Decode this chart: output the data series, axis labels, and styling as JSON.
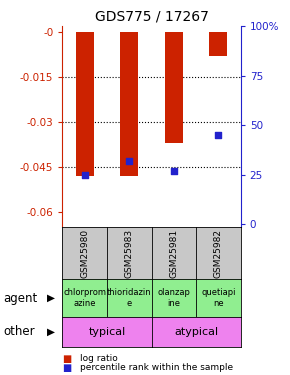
{
  "title": "GDS775 / 17267",
  "samples": [
    "GSM25980",
    "GSM25983",
    "GSM25981",
    "GSM25982"
  ],
  "log_ratio": [
    -0.048,
    -0.048,
    -0.037,
    -0.008
  ],
  "percentile_rank": [
    25,
    32,
    27,
    45
  ],
  "ylim_left": [
    -0.065,
    0.002
  ],
  "ylim_right": [
    -1.3,
    100
  ],
  "yticks_left": [
    0.0,
    -0.015,
    -0.03,
    -0.045,
    -0.06
  ],
  "yticks_left_labels": [
    "-0",
    "-0.015",
    "-0.03",
    "-0.045",
    "-0.06"
  ],
  "yticks_right": [
    100,
    75,
    50,
    25,
    0
  ],
  "yticks_right_labels": [
    "100%",
    "75",
    "50",
    "25",
    "0"
  ],
  "grid_yticks": [
    -0.015,
    -0.03,
    -0.045
  ],
  "agent_labels": [
    "chlorprom\nazine",
    "thioridazin\ne",
    "olanzap\nine",
    "quetiapi\nne"
  ],
  "agent_color": "#90ee90",
  "other_color": "#ee82ee",
  "bar_color": "#cc2200",
  "dot_color": "#2222cc",
  "sample_bg_color": "#c8c8c8",
  "left_axis_color": "#cc2200",
  "right_axis_color": "#2222cc",
  "legend_red_label": "log ratio",
  "legend_blue_label": "percentile rank within the sample",
  "bar_width": 0.4,
  "dot_size": 20
}
